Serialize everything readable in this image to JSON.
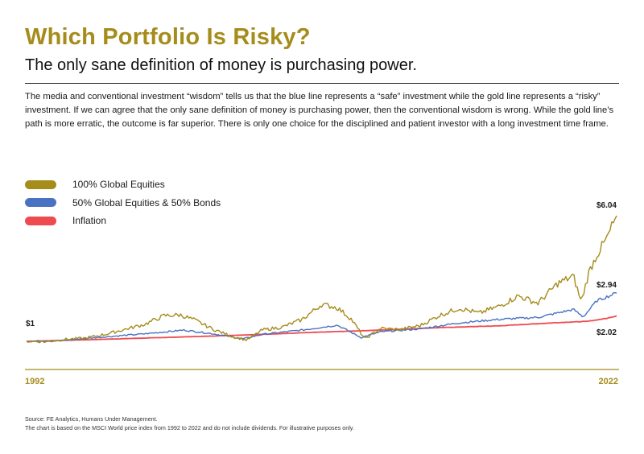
{
  "header": {
    "title": "Which Portfolio Is Risky?",
    "subtitle": "The only sane definition of money is purchasing power.",
    "body": "The media and conventional investment “wisdom” tells us that the blue line represents a “safe” investment while the gold line represents a “risky” investment. If we can agree that the only sane definition of money is purchasing power, then the conventional wisdom is wrong. While the gold line’s path is more erratic, the outcome is far superior. There is only one choice for the disciplined and patient investor with a long investment time frame."
  },
  "legend": [
    {
      "label": "100% Global Equities",
      "color": "#A58C1B"
    },
    {
      "label": "50% Global Equities & 50% Bonds",
      "color": "#4A72C2"
    },
    {
      "label": "Inflation",
      "color": "#EE4B50"
    }
  ],
  "chart_data": {
    "type": "line",
    "title": "",
    "xlabel": "",
    "ylabel": "",
    "x_range": [
      1992,
      2022
    ],
    "ylim": [
      0.9,
      6.3
    ],
    "x_tick_labels": [
      "1992",
      "2022"
    ],
    "start_label": "$1",
    "grid": false,
    "legend_position": "top-left",
    "series": [
      {
        "name": "100% Global Equities",
        "color": "#A58C1B",
        "end_label": "$6.04",
        "x": [
          1992,
          1993,
          1994,
          1995,
          1996,
          1997,
          1998,
          1999,
          1999.8,
          2000.5,
          2001.5,
          2002.5,
          2003.2,
          2004,
          2005,
          2006,
          2007,
          2007.8,
          2008.5,
          2009.2,
          2010,
          2011,
          2012,
          2013,
          2014,
          2015,
          2016,
          2017,
          2018,
          2019,
          2019.8,
          2020.2,
          2020.6,
          2021,
          2021.5,
          2022
        ],
        "y": [
          1.0,
          0.98,
          1.08,
          1.13,
          1.28,
          1.48,
          1.68,
          2.03,
          2.06,
          1.87,
          1.48,
          1.18,
          1.05,
          1.46,
          1.57,
          1.87,
          2.48,
          2.35,
          1.9,
          1.09,
          1.52,
          1.47,
          1.63,
          2.04,
          2.33,
          2.13,
          2.4,
          2.82,
          2.53,
          3.32,
          3.62,
          2.58,
          3.8,
          4.48,
          5.12,
          6.04
        ]
      },
      {
        "name": "50% Global Equities & 50% Bonds",
        "color": "#4A72C2",
        "end_label": "$2.94",
        "x": [
          1992,
          1994,
          1996,
          1998,
          2000,
          2001.5,
          2003,
          2004,
          2006,
          2007.8,
          2009,
          2010,
          2012,
          2014,
          2016,
          2018,
          2019.8,
          2020.3,
          2021,
          2022
        ],
        "y": [
          1.0,
          1.04,
          1.18,
          1.3,
          1.45,
          1.3,
          1.1,
          1.28,
          1.45,
          1.65,
          1.15,
          1.38,
          1.5,
          1.74,
          1.88,
          1.96,
          2.28,
          1.98,
          2.63,
          2.94
        ]
      },
      {
        "name": "Inflation",
        "color": "#EE4B50",
        "end_label": "$2.02",
        "x": [
          1992,
          1995,
          1998,
          2001,
          2004,
          2007,
          2010,
          2013,
          2016,
          2019,
          2020.5,
          2021.5,
          2022
        ],
        "y": [
          1.0,
          1.06,
          1.13,
          1.2,
          1.28,
          1.37,
          1.45,
          1.55,
          1.62,
          1.75,
          1.8,
          1.92,
          2.02
        ]
      }
    ]
  },
  "source": {
    "line1": "Source: FE Analytics, Humans Under Management.",
    "line2": "The chart is based on the MSCI World price index from 1992 to 2022 and do not include dividends. For illustrative purposes only."
  }
}
